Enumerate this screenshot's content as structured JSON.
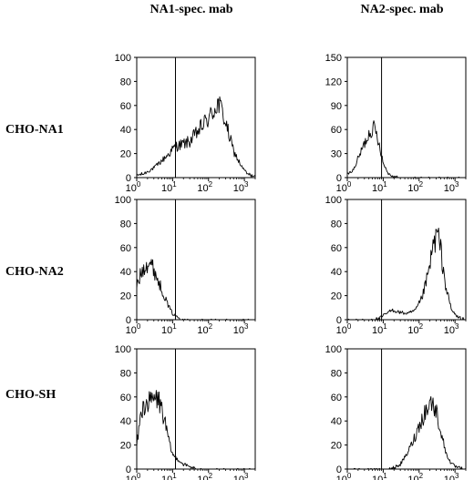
{
  "column_headers": [
    "NA1-spec. mab",
    "NA2-spec. mab"
  ],
  "row_labels": [
    "CHO-NA1",
    "CHO-NA2",
    "CHO-SH"
  ],
  "chart_data": [
    {
      "type": "line",
      "row": "CHO-NA1",
      "column": "NA1-spec. mab",
      "x_scale": "log",
      "xlim": [
        1,
        2000
      ],
      "ylim": [
        0,
        100
      ],
      "y_ticks": [
        "0",
        "20",
        "40",
        "60",
        "80",
        "100"
      ],
      "x_ticks": [
        {
          "base": "10",
          "exp": "0"
        },
        {
          "base": "10",
          "exp": "1"
        },
        {
          "base": "10",
          "exp": "2"
        },
        {
          "base": "10",
          "exp": "3"
        }
      ],
      "gate_x": 12,
      "x": [
        1,
        1.5,
        2,
        3,
        5,
        8,
        12,
        20,
        30,
        50,
        80,
        120,
        180,
        250,
        350,
        500,
        800,
        1200,
        2000
      ],
      "y": [
        2,
        3,
        5,
        8,
        14,
        20,
        26,
        28,
        30,
        38,
        46,
        52,
        62,
        54,
        38,
        22,
        10,
        3,
        1
      ]
    },
    {
      "type": "line",
      "row": "CHO-NA1",
      "column": "NA2-spec. mab",
      "x_scale": "log",
      "xlim": [
        1,
        2000
      ],
      "ylim": [
        0,
        150
      ],
      "y_ticks": [
        "0",
        "30",
        "60",
        "90",
        "120",
        "150"
      ],
      "x_ticks": [
        {
          "base": "10",
          "exp": "0"
        },
        {
          "base": "10",
          "exp": "1"
        },
        {
          "base": "10",
          "exp": "2"
        },
        {
          "base": "10",
          "exp": "3"
        }
      ],
      "gate_x": 9,
      "x": [
        1,
        1.5,
        2,
        3,
        4,
        5,
        6,
        8,
        10,
        14,
        20,
        40,
        100,
        2000
      ],
      "y": [
        4,
        10,
        24,
        42,
        55,
        62,
        60,
        40,
        18,
        5,
        1,
        0,
        0,
        0
      ]
    },
    {
      "type": "line",
      "row": "CHO-NA2",
      "column": "NA1-spec. mab",
      "x_scale": "log",
      "xlim": [
        1,
        2000
      ],
      "ylim": [
        0,
        100
      ],
      "y_ticks": [
        "0",
        "20",
        "40",
        "60",
        "80",
        "100"
      ],
      "x_ticks": [
        {
          "base": "10",
          "exp": "0"
        },
        {
          "base": "10",
          "exp": "1"
        },
        {
          "base": "10",
          "exp": "2"
        },
        {
          "base": "10",
          "exp": "3"
        }
      ],
      "gate_x": 12,
      "x": [
        1,
        1.3,
        1.7,
        2.2,
        3,
        4,
        5.5,
        7.5,
        10,
        14,
        20,
        40,
        100,
        2000
      ],
      "y": [
        28,
        38,
        46,
        48,
        42,
        32,
        22,
        12,
        5,
        2,
        0,
        0,
        0,
        0
      ]
    },
    {
      "type": "line",
      "row": "CHO-NA2",
      "column": "NA2-spec. mab",
      "x_scale": "log",
      "xlim": [
        1,
        2000
      ],
      "ylim": [
        0,
        100
      ],
      "y_ticks": [
        "0",
        "20",
        "40",
        "60",
        "80",
        "100"
      ],
      "x_ticks": [
        {
          "base": "10",
          "exp": "0"
        },
        {
          "base": "10",
          "exp": "1"
        },
        {
          "base": "10",
          "exp": "2"
        },
        {
          "base": "10",
          "exp": "3"
        }
      ],
      "gate_x": 9,
      "x": [
        1,
        5,
        8,
        12,
        18,
        30,
        50,
        80,
        120,
        180,
        250,
        320,
        400,
        550,
        800,
        1200,
        2000
      ],
      "y": [
        0,
        0,
        1,
        5,
        8,
        6,
        5,
        8,
        18,
        38,
        62,
        72,
        58,
        28,
        8,
        2,
        0
      ]
    },
    {
      "type": "line",
      "row": "CHO-SH",
      "column": "NA1-spec. mab",
      "x_scale": "log",
      "xlim": [
        1,
        2000
      ],
      "ylim": [
        0,
        100
      ],
      "y_ticks": [
        "0",
        "20",
        "40",
        "60",
        "80",
        "100"
      ],
      "x_ticks": [
        {
          "base": "10",
          "exp": "0"
        },
        {
          "base": "10",
          "exp": "1"
        },
        {
          "base": "10",
          "exp": "2"
        },
        {
          "base": "10",
          "exp": "3"
        }
      ],
      "gate_x": 12,
      "x": [
        1,
        1.3,
        1.7,
        2.2,
        3,
        4,
        5,
        6.5,
        8,
        10,
        14,
        20,
        30,
        50,
        2000
      ],
      "y": [
        20,
        45,
        55,
        55,
        58,
        58,
        50,
        35,
        22,
        12,
        8,
        4,
        2,
        0,
        0
      ]
    },
    {
      "type": "line",
      "row": "CHO-SH",
      "column": "NA2-spec. mab",
      "x_scale": "log",
      "xlim": [
        1,
        2000
      ],
      "ylim": [
        0,
        100
      ],
      "y_ticks": [
        "0",
        "20",
        "40",
        "60",
        "80",
        "100"
      ],
      "x_ticks": [
        {
          "base": "10",
          "exp": "0"
        },
        {
          "base": "10",
          "exp": "1"
        },
        {
          "base": "10",
          "exp": "2"
        },
        {
          "base": "10",
          "exp": "3"
        }
      ],
      "gate_x": 9,
      "x": [
        1,
        10,
        20,
        30,
        45,
        70,
        100,
        150,
        220,
        300,
        400,
        550,
        800,
        1200,
        2000
      ],
      "y": [
        0,
        0,
        1,
        4,
        12,
        24,
        36,
        48,
        56,
        48,
        32,
        14,
        4,
        1,
        0
      ]
    }
  ]
}
